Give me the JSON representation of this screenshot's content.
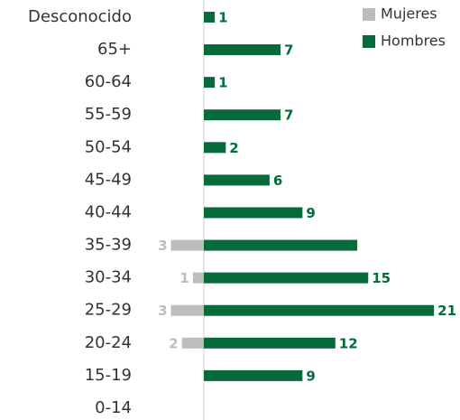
{
  "chart_data": {
    "type": "bar",
    "orientation": "horizontal",
    "categories": [
      "Desconocido",
      "65+",
      "60-64",
      "55-59",
      "50-54",
      "45-49",
      "40-44",
      "35-39",
      "30-34",
      "25-29",
      "20-24",
      "15-19",
      "0-14"
    ],
    "series": [
      {
        "name": "Mujeres",
        "color": "#bdbdbd",
        "direction": "left",
        "values": [
          null,
          null,
          null,
          null,
          null,
          null,
          null,
          3,
          1,
          3,
          2,
          null,
          null
        ]
      },
      {
        "name": "Hombres",
        "color": "#056b3a",
        "direction": "right",
        "values": [
          1,
          7,
          1,
          7,
          2,
          6,
          9,
          14,
          15,
          21,
          12,
          9,
          null
        ],
        "value_labels": [
          1,
          7,
          1,
          7,
          2,
          6,
          9,
          null,
          15,
          21,
          12,
          9,
          null
        ]
      }
    ],
    "legend": "top-right"
  }
}
